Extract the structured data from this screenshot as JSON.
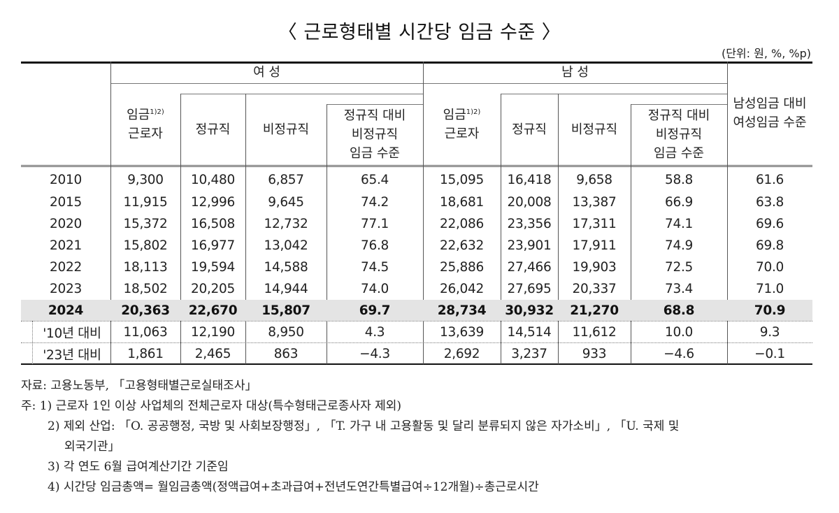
{
  "title": "〈 근로형태별 시간당 임금 수준 〉",
  "unit": "(단위: 원, %, %p)",
  "header": {
    "female_group": "여 성",
    "male_group": "남 성",
    "col_wage_worker_main": "임금",
    "col_wage_worker_sup": "1)2)",
    "col_wage_worker_line2": "근로자",
    "col_regular": "정규직",
    "col_irregular": "비정규직",
    "col_ratio_line1": "정규직 대비",
    "col_ratio_line2": "비정규직",
    "col_ratio_line3": "임금 수준",
    "col_gender_line1": "남성임금 대비",
    "col_gender_line2": "여성임금 수준"
  },
  "rows": [
    {
      "label": "2010",
      "f": [
        "9,300",
        "10,480",
        "6,857",
        "65.4"
      ],
      "m": [
        "15,095",
        "16,418",
        "9,658",
        "58.8"
      ],
      "g": "61.6"
    },
    {
      "label": "2015",
      "f": [
        "11,915",
        "12,996",
        "9,645",
        "74.2"
      ],
      "m": [
        "18,681",
        "20,008",
        "13,387",
        "66.9"
      ],
      "g": "63.8"
    },
    {
      "label": "2020",
      "f": [
        "15,372",
        "16,508",
        "12,732",
        "77.1"
      ],
      "m": [
        "22,086",
        "23,356",
        "17,311",
        "74.1"
      ],
      "g": "69.6"
    },
    {
      "label": "2021",
      "f": [
        "15,802",
        "16,977",
        "13,042",
        "76.8"
      ],
      "m": [
        "22,632",
        "23,901",
        "17,911",
        "74.9"
      ],
      "g": "69.8"
    },
    {
      "label": "2022",
      "f": [
        "18,113",
        "19,594",
        "14,588",
        "74.5"
      ],
      "m": [
        "25,886",
        "27,466",
        "19,903",
        "72.5"
      ],
      "g": "70.0"
    },
    {
      "label": "2023",
      "f": [
        "18,502",
        "20,205",
        "14,944",
        "74.0"
      ],
      "m": [
        "26,042",
        "27,695",
        "20,337",
        "73.4"
      ],
      "g": "71.0"
    },
    {
      "label": "2024",
      "f": [
        "20,363",
        "22,670",
        "15,807",
        "69.7"
      ],
      "m": [
        "28,734",
        "30,932",
        "21,270",
        "68.8"
      ],
      "g": "70.9"
    },
    {
      "label": "'10년 대비",
      "f": [
        "11,063",
        "12,190",
        "8,950",
        "4.3"
      ],
      "m": [
        "13,639",
        "14,514",
        "11,612",
        "10.0"
      ],
      "g": "9.3"
    },
    {
      "label": "'23년 대비",
      "f": [
        "1,861",
        "2,465",
        "863",
        "−4.3"
      ],
      "m": [
        "2,692",
        "3,237",
        "933",
        "−4.6"
      ],
      "g": "−0.1"
    }
  ],
  "notes": {
    "source": "자료: 고용노동부, 「고용형태별근로실태조사」",
    "note1": "주: 1) 근로자 1인 이상 사업체의 전체근로자 대상(특수형태근로종사자 제외)",
    "note2a": "2) 제외 산업: 「O. 공공행정, 국방 및 사회보장행정」, 「T. 가구 내 고용활동 및 달리 분류되지 않은 자가소비」, 「U. 국제 및",
    "note2b": "외국기관」",
    "note3": "3) 각 연도 6월 급여계산기간 기준임",
    "note4": "4) 시간당 임금총액= 월임금총액(정액급여+초과급여+전년도연간특별급여÷12개월)÷총근로시간"
  },
  "colors": {
    "highlight_row": "#e4e4e4",
    "rule": "#111111"
  }
}
